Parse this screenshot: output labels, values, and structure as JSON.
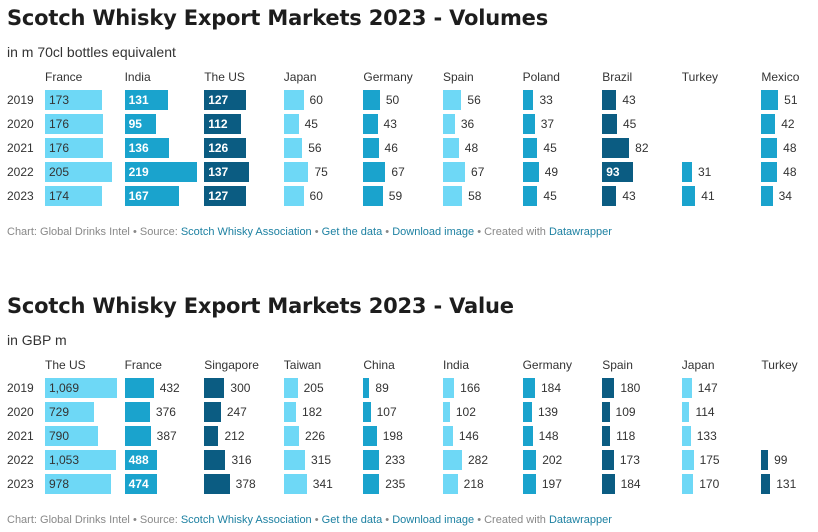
{
  "charts": {
    "volume": {
      "title": "Scotch Whisky Export Markets 2023 - Volumes",
      "subtitle": "in m 70cl bottles equivalent",
      "years": [
        "2019",
        "2020",
        "2021",
        "2022",
        "2023"
      ],
      "footer": {
        "chart_by": "Chart: Global Drinks Intel",
        "source_label": "• Source:",
        "source_link": "Scotch Whisky Association",
        "sep1": "•",
        "get_data": "Get the data",
        "sep2": "•",
        "download": "Download image",
        "created": "• Created with",
        "tool": "Datawrapper"
      }
    },
    "value": {
      "title": "Scotch Whisky Export Markets 2023 - Value",
      "subtitle": "in GBP m",
      "years": [
        "2019",
        "2020",
        "2021",
        "2022",
        "2023"
      ],
      "footer": {
        "chart_by": "Chart: Global Drinks Intel",
        "source_label": "• Source:",
        "source_link": "Scotch Whisky Association",
        "sep1": "•",
        "get_data": "Get the data",
        "sep2": "•",
        "download": "Download image",
        "created": "• Created with",
        "tool": "Datawrapper"
      }
    }
  },
  "colors": {
    "light": "#6ed8f6",
    "medium": "#1aa3cd",
    "dark": "#0b5c82",
    "inside_text_dark": "#333333",
    "inside_text_light": "#ffffff"
  },
  "chart_data": [
    {
      "type": "table",
      "title": "Scotch Whisky Export Markets 2023 - Volumes",
      "unit": "in m 70cl bottles equivalent",
      "rows": [
        "2019",
        "2020",
        "2021",
        "2022",
        "2023"
      ],
      "columns": [
        {
          "name": "France",
          "values": [
            173,
            176,
            176,
            205,
            174
          ],
          "labels": [
            "173",
            "176",
            "176",
            "205",
            "174"
          ]
        },
        {
          "name": "India",
          "values": [
            131,
            95,
            136,
            219,
            167
          ],
          "labels": [
            "131",
            "95",
            "136",
            "219",
            "167"
          ]
        },
        {
          "name": "The US",
          "values": [
            127,
            112,
            126,
            137,
            127
          ],
          "labels": [
            "127",
            "112",
            "126",
            "137",
            "127"
          ]
        },
        {
          "name": "Japan",
          "values": [
            60,
            45,
            56,
            75,
            60
          ],
          "labels": [
            "60",
            "45",
            "56",
            "75",
            "60"
          ]
        },
        {
          "name": "Germany",
          "values": [
            50,
            43,
            46,
            67,
            59
          ],
          "labels": [
            "50",
            "43",
            "46",
            "67",
            "59"
          ]
        },
        {
          "name": "Spain",
          "values": [
            56,
            36,
            48,
            67,
            58
          ],
          "labels": [
            "56",
            "36",
            "48",
            "67",
            "58"
          ]
        },
        {
          "name": "Poland",
          "values": [
            33,
            37,
            45,
            49,
            45
          ],
          "labels": [
            "33",
            "37",
            "45",
            "49",
            "45"
          ]
        },
        {
          "name": "Brazil",
          "values": [
            43,
            45,
            82,
            93,
            43
          ],
          "labels": [
            "43",
            "45",
            "82",
            "93",
            "43"
          ]
        },
        {
          "name": "Turkey",
          "values": [
            null,
            null,
            null,
            31,
            41
          ],
          "labels": [
            "",
            "",
            "",
            "31",
            "41"
          ]
        },
        {
          "name": "Mexico",
          "values": [
            51,
            42,
            48,
            48,
            34
          ],
          "labels": [
            "51",
            "42",
            "48",
            "48",
            "34"
          ]
        }
      ],
      "column_colors": [
        "light",
        "medium",
        "dark",
        "light",
        "medium",
        "light",
        "medium",
        "dark",
        "medium",
        "medium"
      ]
    },
    {
      "type": "table",
      "title": "Scotch Whisky Export Markets 2023 - Value",
      "unit": "in GBP m",
      "rows": [
        "2019",
        "2020",
        "2021",
        "2022",
        "2023"
      ],
      "columns": [
        {
          "name": "The US",
          "values": [
            1069,
            729,
            790,
            1053,
            978
          ],
          "labels": [
            "1,069",
            "729",
            "790",
            "1,053",
            "978"
          ]
        },
        {
          "name": "France",
          "values": [
            432,
            376,
            387,
            488,
            474
          ],
          "labels": [
            "432",
            "376",
            "387",
            "488",
            "474"
          ]
        },
        {
          "name": "Singapore",
          "values": [
            300,
            247,
            212,
            316,
            378
          ],
          "labels": [
            "300",
            "247",
            "212",
            "316",
            "378"
          ]
        },
        {
          "name": "Taiwan",
          "values": [
            205,
            182,
            226,
            315,
            341
          ],
          "labels": [
            "205",
            "182",
            "226",
            "315",
            "341"
          ]
        },
        {
          "name": "China",
          "values": [
            89,
            107,
            198,
            233,
            235
          ],
          "labels": [
            "89",
            "107",
            "198",
            "233",
            "235"
          ]
        },
        {
          "name": "India",
          "values": [
            166,
            102,
            146,
            282,
            218
          ],
          "labels": [
            "166",
            "102",
            "146",
            "282",
            "218"
          ]
        },
        {
          "name": "Germany",
          "values": [
            184,
            139,
            148,
            202,
            197
          ],
          "labels": [
            "184",
            "139",
            "148",
            "202",
            "197"
          ]
        },
        {
          "name": "Spain",
          "values": [
            180,
            109,
            118,
            173,
            184
          ],
          "labels": [
            "180",
            "109",
            "118",
            "173",
            "184"
          ]
        },
        {
          "name": "Japan",
          "values": [
            147,
            114,
            133,
            175,
            170
          ],
          "labels": [
            "147",
            "114",
            "133",
            "175",
            "170"
          ]
        },
        {
          "name": "Turkey",
          "values": [
            null,
            null,
            null,
            99,
            131
          ],
          "labels": [
            "",
            "",
            "",
            "99",
            "131"
          ]
        }
      ],
      "column_colors": [
        "light",
        "medium",
        "dark",
        "light",
        "medium",
        "light",
        "medium",
        "dark",
        "light",
        "dark"
      ]
    }
  ]
}
